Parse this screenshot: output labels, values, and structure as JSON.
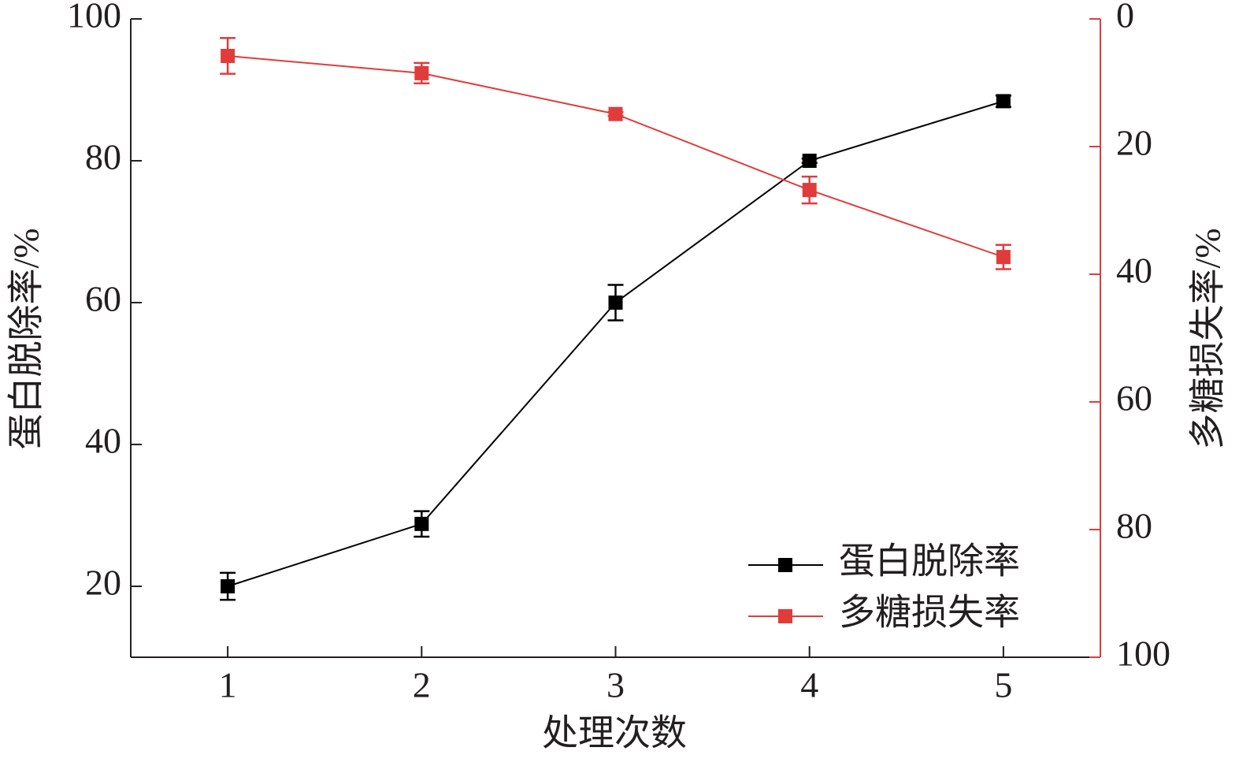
{
  "chart_data": {
    "type": "line",
    "x": [
      1,
      2,
      3,
      4,
      5
    ],
    "xlim": [
      0.5,
      5.5
    ],
    "xticks": [
      1,
      2,
      3,
      4,
      5
    ],
    "ylim": [
      10,
      100
    ],
    "yticks": [
      20,
      40,
      60,
      80,
      100
    ],
    "y2lim": [
      100,
      0
    ],
    "y2ticks": [
      0,
      20,
      40,
      60,
      80,
      100
    ],
    "xlabel": "处理次数",
    "ylabel": "蛋白脱除率/%",
    "y2label": "多糖损失率/%",
    "legend": "lower right",
    "series": [
      {
        "name": "蛋白脱除率",
        "color": "#000000",
        "values": [
          20,
          28.8,
          60,
          80,
          88.4
        ],
        "errors": [
          1.9,
          1.8,
          2.5,
          0.3,
          0.8
        ]
      },
      {
        "name": "多糖损失率",
        "color": "#e03c3c",
        "axis": "y2",
        "values": [
          5.8,
          8.5,
          14.9,
          26.8,
          37.3
        ],
        "errors": [
          2.8,
          1.6,
          0.3,
          2.1,
          1.9
        ]
      }
    ]
  }
}
